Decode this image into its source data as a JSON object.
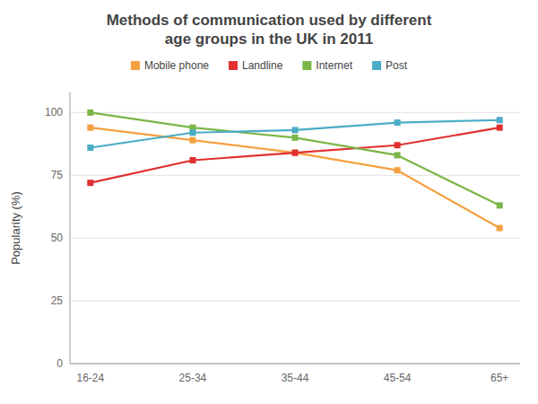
{
  "chart_data": {
    "type": "line",
    "title": "Methods of communication used by different\nage groups in the UK in 2011",
    "y_label": "Popularity (%)",
    "categories": [
      "16-24",
      "25-34",
      "35-44",
      "45-54",
      "65+"
    ],
    "series": [
      {
        "name": "Mobile phone",
        "color": "#f4a040",
        "values": [
          94,
          89,
          84,
          77,
          54
        ]
      },
      {
        "name": "Landline",
        "color": "#e03030",
        "values": [
          72,
          81,
          84,
          87,
          94
        ]
      },
      {
        "name": "Internet",
        "color": "#7ab648",
        "values": [
          100,
          94,
          90,
          83,
          63
        ]
      },
      {
        "name": "Post",
        "color": "#4bacc6",
        "values": [
          86,
          92,
          93,
          96,
          97
        ]
      }
    ],
    "ylim": [
      0,
      108
    ],
    "yticks": [
      0,
      25,
      50,
      75,
      100
    ],
    "grid": true,
    "legend": "top",
    "marker": "square"
  }
}
